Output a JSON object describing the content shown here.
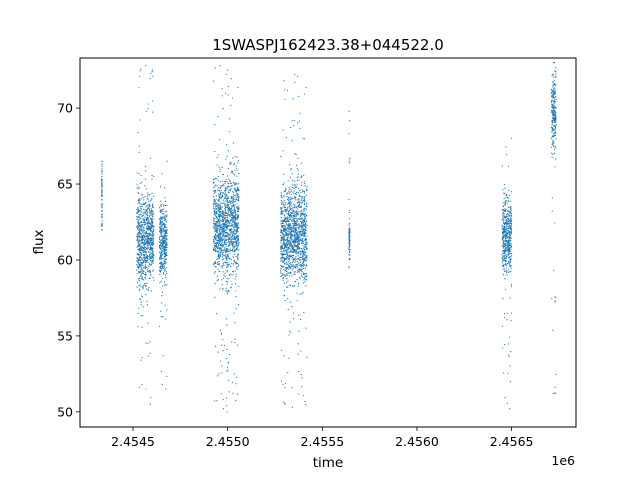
{
  "chart_data": {
    "type": "scatter",
    "title": "1SWASPJ162423.38+044522.0",
    "xlabel": "time",
    "ylabel": "flux",
    "x_multiplier_label": "1e6",
    "xlim": [
      2454220,
      2456840
    ],
    "ylim": [
      49.0,
      73.3
    ],
    "x_ticks": [
      2454500,
      2455000,
      2455500,
      2456000,
      2456500
    ],
    "x_tick_labels": [
      "2.4545",
      "2.4550",
      "2.4555",
      "2.4560",
      "2.4565"
    ],
    "y_ticks": [
      50,
      55,
      60,
      65,
      70
    ],
    "y_tick_labels": [
      "50",
      "55",
      "60",
      "65",
      "70"
    ],
    "grid": false,
    "marker_color": "#1f77b4",
    "series": [
      {
        "segments": [
          {
            "x_start": 2454335,
            "x_end": 2454337,
            "y_mean": 64.0,
            "y_spread": 2.6,
            "outlier_low": 62.0,
            "outlier_high": 66.5
          },
          {
            "x_start": 2454520,
            "x_end": 2454570,
            "y_mean": 61.2,
            "y_spread": 3.0,
            "outlier_low": 51.5,
            "outlier_high": 72.8
          },
          {
            "x_start": 2454570,
            "x_end": 2454610,
            "y_mean": 61.6,
            "y_spread": 2.4,
            "outlier_low": 50.5,
            "outlier_high": 72.5
          },
          {
            "x_start": 2454640,
            "x_end": 2454680,
            "y_mean": 61.2,
            "y_spread": 2.2,
            "outlier_low": 51.5,
            "outlier_high": 66.5
          },
          {
            "x_start": 2454925,
            "x_end": 2454980,
            "y_mean": 62.2,
            "y_spread": 2.8,
            "outlier_low": 50.2,
            "outlier_high": 72.8
          },
          {
            "x_start": 2454980,
            "x_end": 2455060,
            "y_mean": 62.4,
            "y_spread": 3.0,
            "outlier_low": 50.0,
            "outlier_high": 72.5
          },
          {
            "x_start": 2455280,
            "x_end": 2455320,
            "y_mean": 61.4,
            "y_spread": 2.6,
            "outlier_low": 50.5,
            "outlier_high": 71.8
          },
          {
            "x_start": 2455320,
            "x_end": 2455420,
            "y_mean": 61.8,
            "y_spread": 2.8,
            "outlier_low": 50.3,
            "outlier_high": 72.2
          },
          {
            "x_start": 2455640,
            "x_end": 2455646,
            "y_mean": 61.5,
            "y_spread": 1.1,
            "outlier_low": 59.5,
            "outlier_high": 69.8
          },
          {
            "x_start": 2456450,
            "x_end": 2456500,
            "y_mean": 61.6,
            "y_spread": 2.2,
            "outlier_low": 50.2,
            "outlier_high": 68.0
          },
          {
            "x_start": 2456710,
            "x_end": 2456735,
            "y_mean": 69.8,
            "y_spread": 2.4,
            "outlier_low": 51.2,
            "outlier_high": 73.0
          }
        ]
      }
    ]
  }
}
